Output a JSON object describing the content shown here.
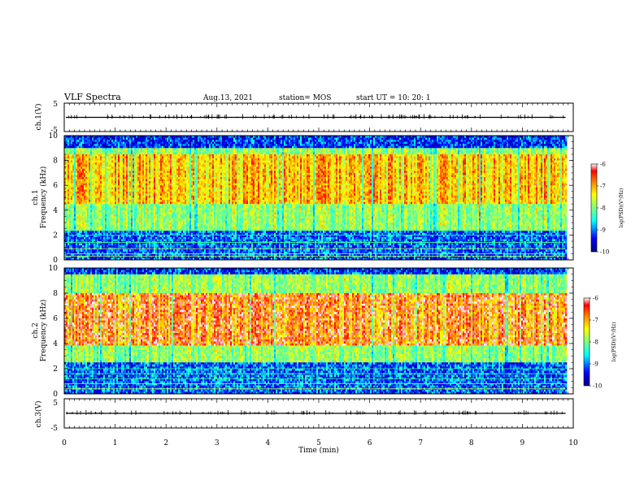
{
  "header": {
    "title": "VLF Spectra",
    "date": "Aug.13, 2021",
    "station": "station= MOS",
    "start_ut": "start  UT =   10: 20: 1"
  },
  "chart_data": [
    {
      "type": "line",
      "name_label": "ch.1(V)",
      "ylabel": "ch.1(V)",
      "ylim": [
        -5,
        5
      ],
      "yticks": [
        "5",
        "-5"
      ],
      "trace_level": 0
    },
    {
      "type": "heatmap",
      "ylabel": "ch.1\nFrequency (kHz)",
      "ylabel_top": "ch.1",
      "ylabel_bottom": "Frequency (kHz)",
      "ylim": [
        0,
        10
      ],
      "yticks": [
        "0",
        "2",
        "4",
        "6",
        "8",
        "10"
      ],
      "colorbar": {
        "label": "log(PSD)(V²/Hz)",
        "range": [
          -10,
          -6
        ],
        "ticks": [
          "-6",
          "-7",
          "-8",
          "-9",
          "-10"
        ]
      },
      "band_khz": [
        2.3,
        9.0
      ],
      "peak_khz": [
        4.5,
        8.5
      ]
    },
    {
      "type": "heatmap",
      "ylabel": "ch.2\nFrequency (kHz)",
      "ylabel_top": "ch.2",
      "ylabel_bottom": "Frequency (kHz)",
      "ylim": [
        0,
        10
      ],
      "yticks": [
        "0",
        "2",
        "4",
        "6",
        "8",
        "10"
      ],
      "colorbar": {
        "label": "log(PSD)(V²/Hz)",
        "range": [
          -10,
          -6
        ],
        "ticks": [
          "-6",
          "-7",
          "-8",
          "-9",
          "-10"
        ]
      },
      "band_khz": [
        2.5,
        9.5
      ],
      "peak_khz": [
        3.8,
        8.0
      ]
    },
    {
      "type": "line",
      "ylabel": "ch.3(V)",
      "ylim": [
        -5,
        5
      ],
      "yticks": [
        "5",
        "-5"
      ],
      "trace_level": 0
    }
  ],
  "xaxis": {
    "label": "Time  (min)",
    "xlim": [
      0,
      10
    ],
    "ticks": [
      "0",
      "1",
      "2",
      "3",
      "4",
      "5",
      "6",
      "7",
      "8",
      "9",
      "10"
    ],
    "data_end_min": 9.85
  },
  "colors": {
    "jet": [
      "#00007f",
      "#0000ff",
      "#00ffff",
      "#7fff7f",
      "#ffff00",
      "#ff7f00",
      "#ff0000",
      "#ffffff"
    ]
  }
}
